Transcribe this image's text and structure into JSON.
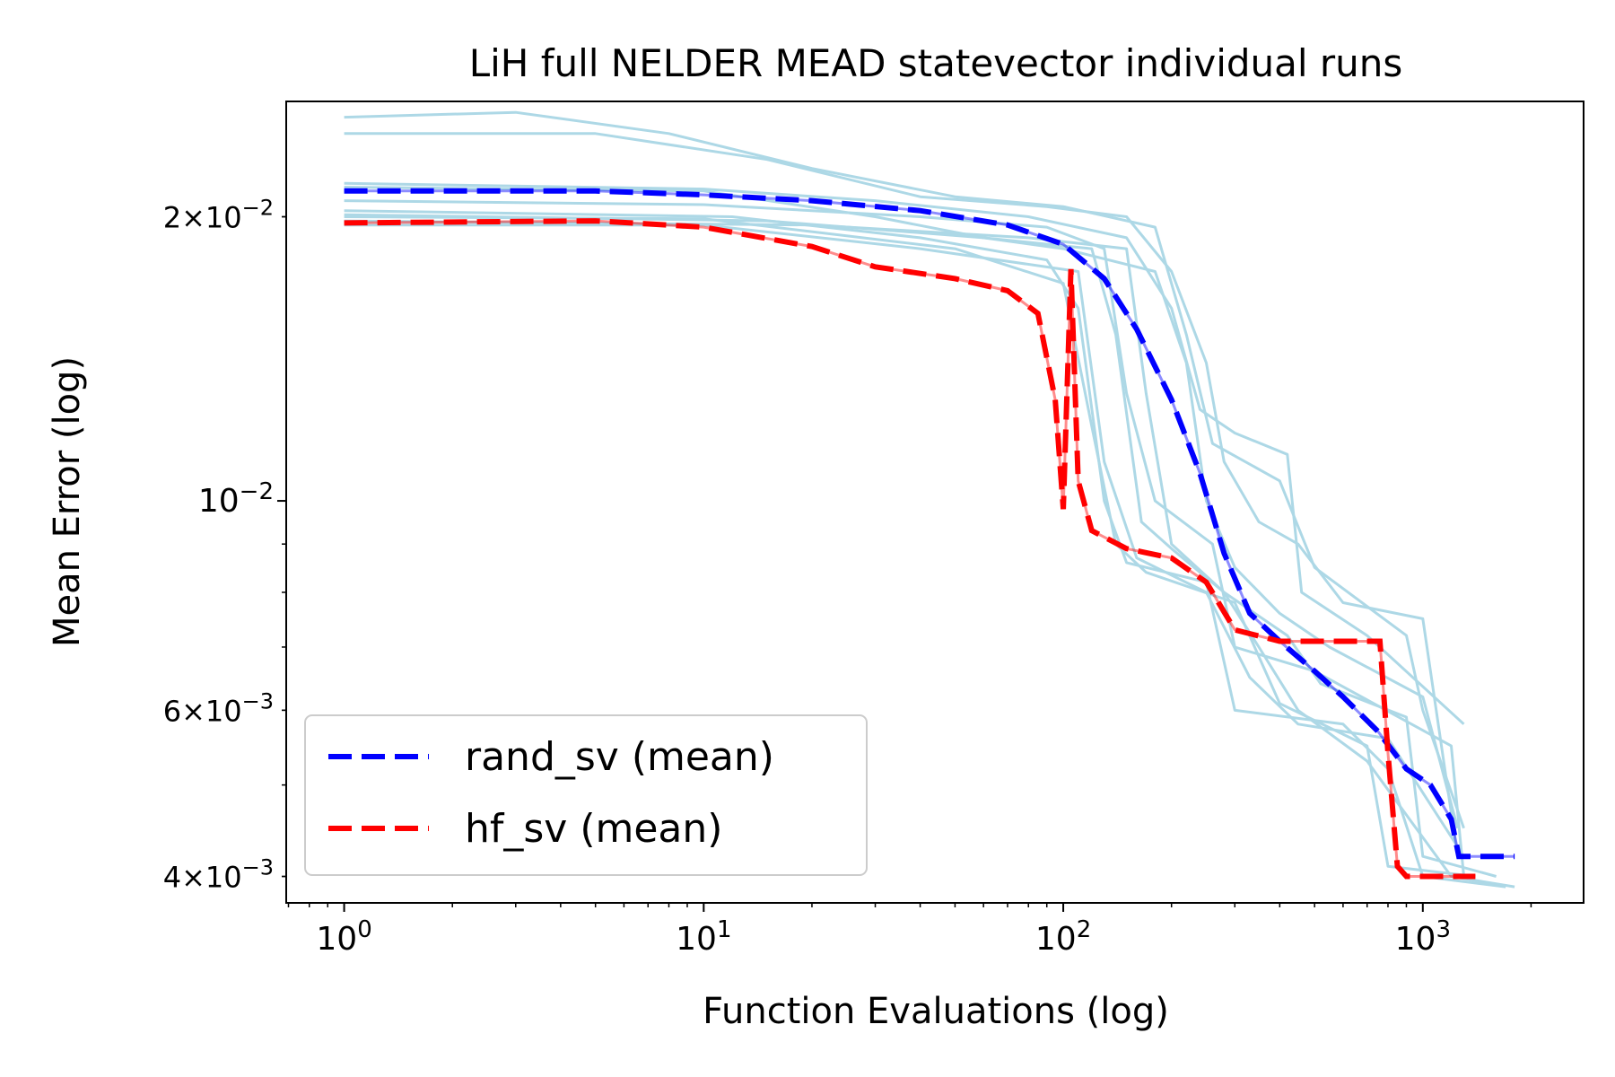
{
  "chart_data": {
    "type": "line",
    "title": "LiH full NELDER MEAD statevector individual runs",
    "xlabel": "Function Evaluations (log)",
    "ylabel": "Mean Error (log)",
    "xscale": "log",
    "yscale": "log",
    "xlim": [
      0.69,
      2800
    ],
    "ylim": [
      0.00375,
      0.0265
    ],
    "xticks": [
      {
        "value": 1,
        "base": "10",
        "exp": "0"
      },
      {
        "value": 10,
        "base": "10",
        "exp": "1"
      },
      {
        "value": 100,
        "base": "10",
        "exp": "2"
      },
      {
        "value": 1000,
        "base": "10",
        "exp": "3"
      }
    ],
    "yticks": [
      {
        "value": 0.02,
        "mant": "2",
        "times": "×",
        "base": "10",
        "exp": "−2"
      },
      {
        "value": 0.01,
        "mant": "",
        "times": "",
        "base": "10",
        "exp": "−2"
      },
      {
        "value": 0.006,
        "mant": "6",
        "times": "×",
        "base": "10",
        "exp": "−3"
      },
      {
        "value": 0.004,
        "mant": "4",
        "times": "×",
        "base": "10",
        "exp": "−3"
      }
    ],
    "series": [
      {
        "name": "rand_sv (mean)",
        "color": "#0000ff",
        "style": "dashed",
        "legend": true,
        "points": [
          [
            1,
            0.0213
          ],
          [
            5,
            0.0213
          ],
          [
            10,
            0.0211
          ],
          [
            20,
            0.0208
          ],
          [
            40,
            0.0203
          ],
          [
            70,
            0.0196
          ],
          [
            100,
            0.0187
          ],
          [
            130,
            0.0172
          ],
          [
            160,
            0.0152
          ],
          [
            200,
            0.0128
          ],
          [
            240,
            0.0107
          ],
          [
            280,
            0.0088
          ],
          [
            330,
            0.0076
          ],
          [
            400,
            0.0071
          ],
          [
            500,
            0.0066
          ],
          [
            600,
            0.0062
          ],
          [
            750,
            0.0057
          ],
          [
            900,
            0.0052
          ],
          [
            1050,
            0.005
          ],
          [
            1200,
            0.0046
          ],
          [
            1260,
            0.0042
          ],
          [
            1800,
            0.0042
          ]
        ]
      },
      {
        "name": "hf_sv (mean)",
        "color": "#ff0000",
        "style": "dashed",
        "legend": true,
        "points": [
          [
            1,
            0.0197
          ],
          [
            5,
            0.0198
          ],
          [
            10,
            0.0195
          ],
          [
            20,
            0.0186
          ],
          [
            30,
            0.0177
          ],
          [
            50,
            0.0172
          ],
          [
            70,
            0.0167
          ],
          [
            85,
            0.0158
          ],
          [
            95,
            0.0128
          ],
          [
            100,
            0.0098
          ],
          [
            105,
            0.0176
          ],
          [
            110,
            0.0105
          ],
          [
            120,
            0.0093
          ],
          [
            150,
            0.0089
          ],
          [
            200,
            0.0087
          ],
          [
            250,
            0.0082
          ],
          [
            300,
            0.0073
          ],
          [
            400,
            0.0071
          ],
          [
            700,
            0.0071
          ],
          [
            760,
            0.0071
          ],
          [
            800,
            0.0054
          ],
          [
            850,
            0.0041
          ],
          [
            900,
            0.004
          ],
          [
            1400,
            0.004
          ]
        ]
      },
      {
        "name": "run",
        "color": "#add8e6",
        "style": "solid",
        "legend": false,
        "points": [
          [
            1,
            0.0255
          ],
          [
            3,
            0.0258
          ],
          [
            8,
            0.0245
          ],
          [
            20,
            0.0225
          ],
          [
            50,
            0.021
          ],
          [
            100,
            0.0205
          ],
          [
            180,
            0.0195
          ],
          [
            220,
            0.015
          ],
          [
            260,
            0.0115
          ],
          [
            400,
            0.0105
          ],
          [
            500,
            0.0085
          ],
          [
            900,
            0.0072
          ],
          [
            1000,
            0.006
          ],
          [
            1300,
            0.0045
          ]
        ]
      },
      {
        "name": "run",
        "color": "#add8e6",
        "style": "solid",
        "legend": false,
        "points": [
          [
            1,
            0.0245
          ],
          [
            5,
            0.0245
          ],
          [
            15,
            0.023
          ],
          [
            40,
            0.021
          ],
          [
            90,
            0.0205
          ],
          [
            150,
            0.02
          ],
          [
            200,
            0.0175
          ],
          [
            250,
            0.014
          ],
          [
            280,
            0.011
          ],
          [
            350,
            0.0095
          ],
          [
            450,
            0.009
          ],
          [
            600,
            0.0078
          ],
          [
            1000,
            0.0075
          ],
          [
            1250,
            0.0042
          ]
        ]
      },
      {
        "name": "run",
        "color": "#add8e6",
        "style": "solid",
        "legend": false,
        "points": [
          [
            1,
            0.0217
          ],
          [
            10,
            0.0214
          ],
          [
            30,
            0.0208
          ],
          [
            80,
            0.02
          ],
          [
            150,
            0.019
          ],
          [
            200,
            0.016
          ],
          [
            240,
            0.0125
          ],
          [
            300,
            0.0118
          ],
          [
            420,
            0.0112
          ],
          [
            460,
            0.008
          ],
          [
            700,
            0.0072
          ],
          [
            1300,
            0.0058
          ]
        ]
      },
      {
        "name": "run",
        "color": "#add8e6",
        "style": "solid",
        "legend": false,
        "points": [
          [
            1,
            0.0208
          ],
          [
            10,
            0.0206
          ],
          [
            40,
            0.02
          ],
          [
            90,
            0.0195
          ],
          [
            130,
            0.0185
          ],
          [
            150,
            0.013
          ],
          [
            180,
            0.01
          ],
          [
            260,
            0.009
          ],
          [
            300,
            0.007
          ],
          [
            500,
            0.0066
          ],
          [
            1200,
            0.0055
          ],
          [
            1300,
            0.004
          ]
        ]
      },
      {
        "name": "run",
        "color": "#add8e6",
        "style": "solid",
        "legend": false,
        "points": [
          [
            1,
            0.0203
          ],
          [
            12,
            0.02
          ],
          [
            40,
            0.019
          ],
          [
            90,
            0.018
          ],
          [
            110,
            0.016
          ],
          [
            130,
            0.01
          ],
          [
            150,
            0.0086
          ],
          [
            250,
            0.0082
          ],
          [
            300,
            0.006
          ],
          [
            600,
            0.0058
          ],
          [
            800,
            0.0052
          ],
          [
            1000,
            0.004
          ],
          [
            1700,
            0.0039
          ]
        ]
      },
      {
        "name": "run",
        "color": "#add8e6",
        "style": "solid",
        "legend": false,
        "points": [
          [
            1,
            0.02
          ],
          [
            10,
            0.0199
          ],
          [
            50,
            0.0185
          ],
          [
            100,
            0.017
          ],
          [
            120,
            0.012
          ],
          [
            140,
            0.009
          ],
          [
            170,
            0.0084
          ],
          [
            300,
            0.0078
          ],
          [
            400,
            0.0061
          ],
          [
            700,
            0.0055
          ],
          [
            800,
            0.0041
          ],
          [
            1400,
            0.004
          ]
        ]
      },
      {
        "name": "run",
        "color": "#add8e6",
        "style": "solid",
        "legend": false,
        "points": [
          [
            1,
            0.0196
          ],
          [
            10,
            0.0196
          ],
          [
            40,
            0.0185
          ],
          [
            110,
            0.0175
          ],
          [
            130,
            0.011
          ],
          [
            160,
            0.0087
          ],
          [
            250,
            0.008
          ],
          [
            330,
            0.0065
          ],
          [
            450,
            0.0058
          ],
          [
            800,
            0.0056
          ],
          [
            1300,
            0.0042
          ]
        ]
      },
      {
        "name": "run",
        "color": "#add8e6",
        "style": "solid",
        "legend": false,
        "points": [
          [
            1,
            0.0201
          ],
          [
            15,
            0.0198
          ],
          [
            60,
            0.019
          ],
          [
            120,
            0.0185
          ],
          [
            140,
            0.015
          ],
          [
            165,
            0.0095
          ],
          [
            200,
            0.0089
          ],
          [
            280,
            0.008
          ],
          [
            350,
            0.007
          ],
          [
            450,
            0.006
          ],
          [
            700,
            0.0053
          ],
          [
            1200,
            0.004
          ],
          [
            1800,
            0.0039
          ]
        ]
      },
      {
        "name": "run",
        "color": "#add8e6",
        "style": "solid",
        "legend": false,
        "points": [
          [
            1,
            0.0198
          ],
          [
            20,
            0.0196
          ],
          [
            80,
            0.019
          ],
          [
            150,
            0.0185
          ],
          [
            170,
            0.013
          ],
          [
            200,
            0.009
          ],
          [
            280,
            0.008
          ],
          [
            420,
            0.0072
          ],
          [
            520,
            0.0064
          ],
          [
            900,
            0.0059
          ],
          [
            1000,
            0.0042
          ],
          [
            1600,
            0.004
          ]
        ]
      },
      {
        "name": "run",
        "color": "#add8e6",
        "style": "solid",
        "legend": false,
        "points": [
          [
            1,
            0.0215
          ],
          [
            10,
            0.0213
          ],
          [
            30,
            0.02
          ],
          [
            60,
            0.019
          ],
          [
            100,
            0.0185
          ],
          [
            180,
            0.0175
          ],
          [
            220,
            0.014
          ],
          [
            250,
            0.01
          ],
          [
            300,
            0.0085
          ],
          [
            400,
            0.0076
          ],
          [
            550,
            0.007
          ],
          [
            1000,
            0.0062
          ],
          [
            1250,
            0.0045
          ]
        ]
      }
    ],
    "legend_position": "lower-left"
  }
}
